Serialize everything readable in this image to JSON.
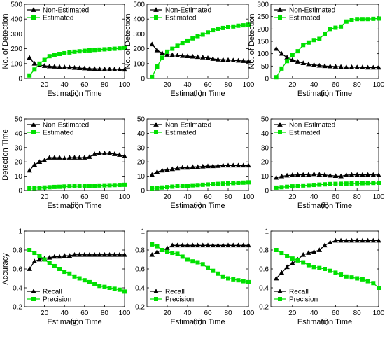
{
  "colors": {
    "non_estimated": "#000000",
    "estimated": "#00e000"
  },
  "chart_data": [
    {
      "type": "line",
      "caption": "(a)",
      "xlabel": "Estimation Time",
      "ylabel": "No. of Detection",
      "xlim": [
        0,
        100
      ],
      "ylim": [
        0,
        500
      ],
      "xticks": [
        20,
        40,
        60,
        80,
        100
      ],
      "yticks": [
        0,
        100,
        200,
        300,
        400,
        500
      ],
      "legend_position": "top-left",
      "x": [
        5,
        10,
        15,
        20,
        25,
        30,
        35,
        40,
        45,
        50,
        55,
        60,
        65,
        70,
        75,
        80,
        85,
        90,
        95,
        100
      ],
      "series": [
        {
          "name": "Non-Estimated",
          "marker": "triangle",
          "values": [
            140,
            100,
            90,
            85,
            82,
            80,
            78,
            76,
            74,
            72,
            70,
            68,
            66,
            65,
            64,
            63,
            62,
            62,
            61,
            60
          ]
        },
        {
          "name": "Estimated",
          "marker": "square",
          "values": [
            20,
            60,
            100,
            125,
            150,
            158,
            165,
            170,
            175,
            180,
            183,
            186,
            189,
            192,
            194,
            196,
            198,
            200,
            202,
            208
          ]
        }
      ]
    },
    {
      "type": "line",
      "caption": "(b)",
      "xlabel": "Estimation Time",
      "ylabel": "No. of Detection",
      "xlim": [
        0,
        100
      ],
      "ylim": [
        0,
        500
      ],
      "xticks": [
        20,
        40,
        60,
        80,
        100
      ],
      "yticks": [
        0,
        100,
        200,
        300,
        400,
        500
      ],
      "legend_position": "top-left",
      "x": [
        5,
        10,
        15,
        20,
        25,
        30,
        35,
        40,
        45,
        50,
        55,
        60,
        65,
        70,
        75,
        80,
        85,
        90,
        95,
        100
      ],
      "series": [
        {
          "name": "Non-Estimated",
          "marker": "triangle",
          "values": [
            230,
            190,
            170,
            160,
            158,
            155,
            152,
            150,
            148,
            145,
            142,
            138,
            132,
            128,
            126,
            124,
            122,
            120,
            118,
            116
          ]
        },
        {
          "name": "Estimated",
          "marker": "square",
          "values": [
            10,
            80,
            140,
            180,
            200,
            220,
            240,
            255,
            270,
            285,
            295,
            310,
            325,
            335,
            340,
            345,
            350,
            355,
            358,
            362
          ]
        }
      ]
    },
    {
      "type": "line",
      "caption": "(c)",
      "xlabel": "Estimation Time",
      "ylabel": "No. of Detection",
      "xlim": [
        0,
        100
      ],
      "ylim": [
        0,
        300
      ],
      "xticks": [
        20,
        40,
        60,
        80,
        100
      ],
      "yticks": [
        0,
        50,
        100,
        150,
        200,
        250,
        300
      ],
      "legend_position": "top-left",
      "x": [
        5,
        10,
        15,
        20,
        25,
        30,
        35,
        40,
        45,
        50,
        55,
        60,
        65,
        70,
        75,
        80,
        85,
        90,
        95,
        100
      ],
      "series": [
        {
          "name": "Non-Estimated",
          "marker": "triangle",
          "values": [
            120,
            100,
            85,
            75,
            68,
            62,
            58,
            55,
            52,
            50,
            49,
            48,
            47,
            46,
            46,
            45,
            45,
            44,
            44,
            44
          ]
        },
        {
          "name": "Estimated",
          "marker": "square",
          "values": [
            5,
            40,
            70,
            95,
            110,
            135,
            145,
            155,
            160,
            180,
            200,
            205,
            210,
            230,
            235,
            240,
            240,
            240,
            241,
            242
          ]
        }
      ]
    },
    {
      "type": "line",
      "caption": "(d)",
      "xlabel": "Estimation Time",
      "ylabel": "Detection Time",
      "xlim": [
        0,
        100
      ],
      "ylim": [
        0,
        50
      ],
      "xticks": [
        20,
        40,
        60,
        80,
        100
      ],
      "yticks": [
        0,
        10,
        20,
        30,
        40,
        50
      ],
      "legend_position": "top-left",
      "x": [
        5,
        10,
        15,
        20,
        25,
        30,
        35,
        40,
        45,
        50,
        55,
        60,
        65,
        70,
        75,
        80,
        85,
        90,
        95,
        100
      ],
      "series": [
        {
          "name": "Non-Estimated",
          "marker": "triangle",
          "values": [
            14,
            18,
            20,
            21,
            23,
            23,
            23,
            22.5,
            23,
            23,
            23,
            23,
            23.5,
            25.5,
            26,
            26,
            26,
            25.5,
            25,
            24
          ]
        },
        {
          "name": "Estimated",
          "marker": "square",
          "values": [
            1.5,
            1.7,
            1.9,
            2.1,
            2.3,
            2.5,
            2.6,
            2.8,
            2.9,
            3.0,
            3.1,
            3.2,
            3.3,
            3.4,
            3.5,
            3.6,
            3.7,
            3.8,
            3.9,
            4.0
          ]
        }
      ]
    },
    {
      "type": "line",
      "caption": "(e)",
      "xlabel": "Estimation Time",
      "ylabel": "",
      "xlim": [
        0,
        100
      ],
      "ylim": [
        0,
        50
      ],
      "xticks": [
        20,
        40,
        60,
        80,
        100
      ],
      "yticks": [
        0,
        10,
        20,
        30,
        40,
        50
      ],
      "legend_position": "top-left",
      "x": [
        5,
        10,
        15,
        20,
        25,
        30,
        35,
        40,
        45,
        50,
        55,
        60,
        65,
        70,
        75,
        80,
        85,
        90,
        95,
        100
      ],
      "series": [
        {
          "name": "Non-Estimated",
          "marker": "triangle",
          "values": [
            11,
            13,
            14,
            14.5,
            15,
            15.5,
            16,
            16,
            16.5,
            16.5,
            16.8,
            17,
            17,
            17.2,
            17.5,
            17.5,
            17.5,
            17.5,
            17.5,
            17.5
          ]
        },
        {
          "name": "Estimated",
          "marker": "square",
          "values": [
            1.5,
            1.8,
            2.1,
            2.4,
            2.7,
            3.0,
            3.2,
            3.4,
            3.6,
            3.8,
            4.0,
            4.2,
            4.4,
            4.6,
            4.8,
            5.0,
            5.2,
            5.4,
            5.5,
            5.7
          ]
        }
      ]
    },
    {
      "type": "line",
      "caption": "(f)",
      "xlabel": "Estimation Time",
      "ylabel": "",
      "xlim": [
        0,
        100
      ],
      "ylim": [
        0,
        50
      ],
      "xticks": [
        20,
        40,
        60,
        80,
        100
      ],
      "yticks": [
        0,
        10,
        20,
        30,
        40,
        50
      ],
      "legend_position": "top-left",
      "x": [
        5,
        10,
        15,
        20,
        25,
        30,
        35,
        40,
        45,
        50,
        55,
        60,
        65,
        70,
        75,
        80,
        85,
        90,
        95,
        100
      ],
      "series": [
        {
          "name": "Non-Estimated",
          "marker": "triangle",
          "values": [
            9,
            10,
            10.5,
            10.8,
            11,
            11,
            11.2,
            11.5,
            11.2,
            11,
            10.5,
            10.2,
            10,
            10.8,
            11,
            11,
            11,
            11,
            11,
            10.8
          ]
        },
        {
          "name": "Estimated",
          "marker": "square",
          "values": [
            2,
            2.3,
            2.6,
            2.9,
            3.2,
            3.5,
            3.7,
            3.9,
            4.1,
            4.3,
            4.5,
            4.6,
            4.7,
            4.8,
            4.9,
            5.0,
            5.1,
            5.2,
            5.3,
            5.4
          ]
        }
      ]
    },
    {
      "type": "line",
      "caption": "(g)",
      "xlabel": "Estimation Time",
      "ylabel": "Accuracy",
      "xlim": [
        0,
        100
      ],
      "ylim": [
        0.2,
        1
      ],
      "xticks": [
        20,
        40,
        60,
        80,
        100
      ],
      "yticks": [
        0.2,
        0.4,
        0.6,
        0.8,
        1
      ],
      "legend_position": "bottom-left",
      "x": [
        5,
        10,
        15,
        20,
        25,
        30,
        35,
        40,
        45,
        50,
        55,
        60,
        65,
        70,
        75,
        80,
        85,
        90,
        95,
        100
      ],
      "series": [
        {
          "name": "Recall",
          "marker": "triangle",
          "values": [
            0.6,
            0.68,
            0.7,
            0.71,
            0.72,
            0.73,
            0.73,
            0.74,
            0.74,
            0.75,
            0.75,
            0.75,
            0.75,
            0.75,
            0.75,
            0.75,
            0.75,
            0.75,
            0.75,
            0.75
          ]
        },
        {
          "name": "Precision",
          "marker": "square",
          "values": [
            0.8,
            0.77,
            0.74,
            0.7,
            0.66,
            0.63,
            0.6,
            0.57,
            0.55,
            0.52,
            0.5,
            0.48,
            0.46,
            0.44,
            0.42,
            0.41,
            0.4,
            0.39,
            0.38,
            0.36
          ]
        }
      ]
    },
    {
      "type": "line",
      "caption": "(h)",
      "xlabel": "Estimation Time",
      "ylabel": "",
      "xlim": [
        0,
        100
      ],
      "ylim": [
        0.2,
        1
      ],
      "xticks": [
        20,
        40,
        60,
        80,
        100
      ],
      "yticks": [
        0.2,
        0.4,
        0.6,
        0.8,
        1
      ],
      "legend_position": "bottom-left",
      "x": [
        5,
        10,
        15,
        20,
        25,
        30,
        35,
        40,
        45,
        50,
        55,
        60,
        65,
        70,
        75,
        80,
        85,
        90,
        95,
        100
      ],
      "series": [
        {
          "name": "Recall",
          "marker": "triangle",
          "values": [
            0.75,
            0.78,
            0.8,
            0.82,
            0.85,
            0.85,
            0.85,
            0.85,
            0.85,
            0.85,
            0.85,
            0.85,
            0.85,
            0.85,
            0.85,
            0.85,
            0.85,
            0.85,
            0.85,
            0.85
          ]
        },
        {
          "name": "Precision",
          "marker": "square",
          "values": [
            0.86,
            0.84,
            0.8,
            0.78,
            0.77,
            0.76,
            0.73,
            0.7,
            0.68,
            0.67,
            0.65,
            0.61,
            0.58,
            0.55,
            0.52,
            0.5,
            0.49,
            0.48,
            0.47,
            0.46
          ]
        }
      ]
    },
    {
      "type": "line",
      "caption": "(i)",
      "xlabel": "Estimation Time",
      "ylabel": "",
      "xlim": [
        0,
        100
      ],
      "ylim": [
        0.2,
        1
      ],
      "xticks": [
        20,
        40,
        60,
        80,
        100
      ],
      "yticks": [
        0.2,
        0.4,
        0.6,
        0.8,
        1
      ],
      "legend_position": "bottom-left",
      "x": [
        5,
        10,
        15,
        20,
        25,
        30,
        35,
        40,
        45,
        50,
        55,
        60,
        65,
        70,
        75,
        80,
        85,
        90,
        95,
        100
      ],
      "series": [
        {
          "name": "Recall",
          "marker": "triangle",
          "values": [
            0.5,
            0.56,
            0.62,
            0.66,
            0.7,
            0.75,
            0.77,
            0.78,
            0.8,
            0.85,
            0.88,
            0.9,
            0.9,
            0.9,
            0.9,
            0.9,
            0.9,
            0.9,
            0.9,
            0.9
          ]
        },
        {
          "name": "Precision",
          "marker": "square",
          "values": [
            0.8,
            0.77,
            0.74,
            0.71,
            0.69,
            0.67,
            0.64,
            0.62,
            0.61,
            0.6,
            0.58,
            0.56,
            0.54,
            0.52,
            0.51,
            0.5,
            0.49,
            0.47,
            0.45,
            0.4
          ]
        }
      ]
    }
  ]
}
